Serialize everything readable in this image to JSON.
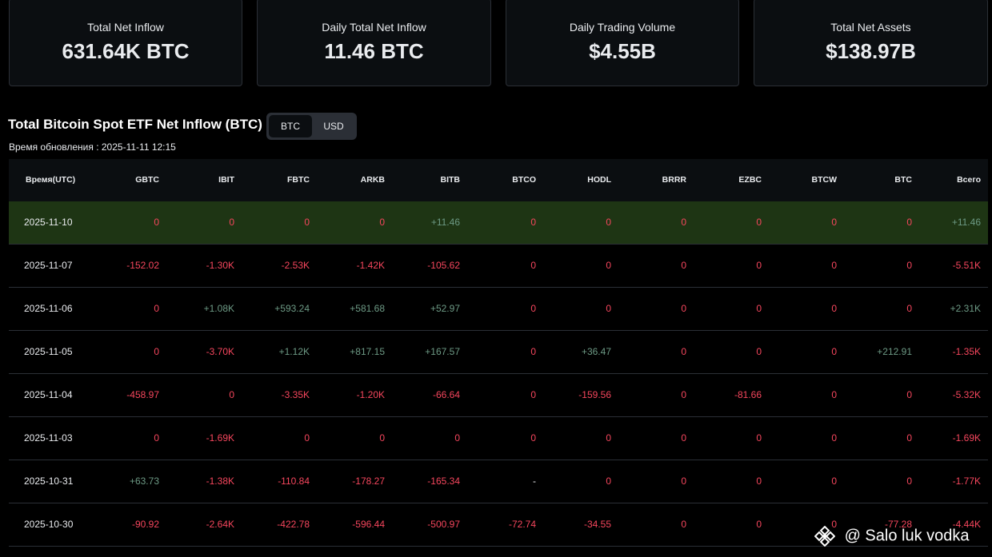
{
  "stats": [
    {
      "label": "Total Net Inflow",
      "value": "631.64K BTC"
    },
    {
      "label": "Daily Total Net Inflow",
      "value": "11.46 BTC"
    },
    {
      "label": "Daily Trading Volume",
      "value": "$4.55B"
    },
    {
      "label": "Total Net Assets",
      "value": "$138.97B"
    }
  ],
  "section": {
    "title": "Total Bitcoin Spot ETF Net Inflow (BTC)",
    "toggle": {
      "btc": "BTC",
      "usd": "USD",
      "selected": "BTC"
    },
    "update_time": "Время обновления : 2025-11-11 12:15"
  },
  "table": {
    "headers": [
      "Время(UTC)",
      "GBTC",
      "IBIT",
      "FBTC",
      "ARKB",
      "BITB",
      "BTCO",
      "HODL",
      "BRRR",
      "EZBC",
      "BTCW",
      "BTC",
      "Всего"
    ],
    "rows": [
      [
        "2025-11-10",
        "0",
        "0",
        "0",
        "0",
        "+11.46",
        "0",
        "0",
        "0",
        "0",
        "0",
        "0",
        "+11.46"
      ],
      [
        "2025-11-07",
        "-152.02",
        "-1.30K",
        "-2.53K",
        "-1.42K",
        "-105.62",
        "0",
        "0",
        "0",
        "0",
        "0",
        "0",
        "-5.51K"
      ],
      [
        "2025-11-06",
        "0",
        "+1.08K",
        "+593.24",
        "+581.68",
        "+52.97",
        "0",
        "0",
        "0",
        "0",
        "0",
        "0",
        "+2.31K"
      ],
      [
        "2025-11-05",
        "0",
        "-3.70K",
        "+1.12K",
        "+817.15",
        "+167.57",
        "0",
        "+36.47",
        "0",
        "0",
        "0",
        "+212.91",
        "-1.35K"
      ],
      [
        "2025-11-04",
        "-458.97",
        "0",
        "-3.35K",
        "-1.20K",
        "-66.64",
        "0",
        "-159.56",
        "0",
        "-81.66",
        "0",
        "0",
        "-5.32K"
      ],
      [
        "2025-11-03",
        "0",
        "-1.69K",
        "0",
        "0",
        "0",
        "0",
        "0",
        "0",
        "0",
        "0",
        "0",
        "-1.69K"
      ],
      [
        "2025-10-31",
        "+63.73",
        "-1.38K",
        "-110.84",
        "-178.27",
        "-165.34",
        "-",
        "0",
        "0",
        "0",
        "0",
        "0",
        "-1.77K"
      ],
      [
        "2025-10-30",
        "-90.92",
        "-2.64K",
        "-422.78",
        "-596.44",
        "-500.97",
        "-72.74",
        "-34.55",
        "0",
        "0",
        "0",
        "-77.28",
        "-4.44K"
      ]
    ]
  },
  "watermark": {
    "text": "@ Salo luk vodka",
    "logo": "binance-logo-icon"
  },
  "colors": {
    "negative": "#f6465d",
    "positive": "#6d9a85",
    "highlight_row": "#1e3514",
    "card_bg": "#0b0e11"
  }
}
